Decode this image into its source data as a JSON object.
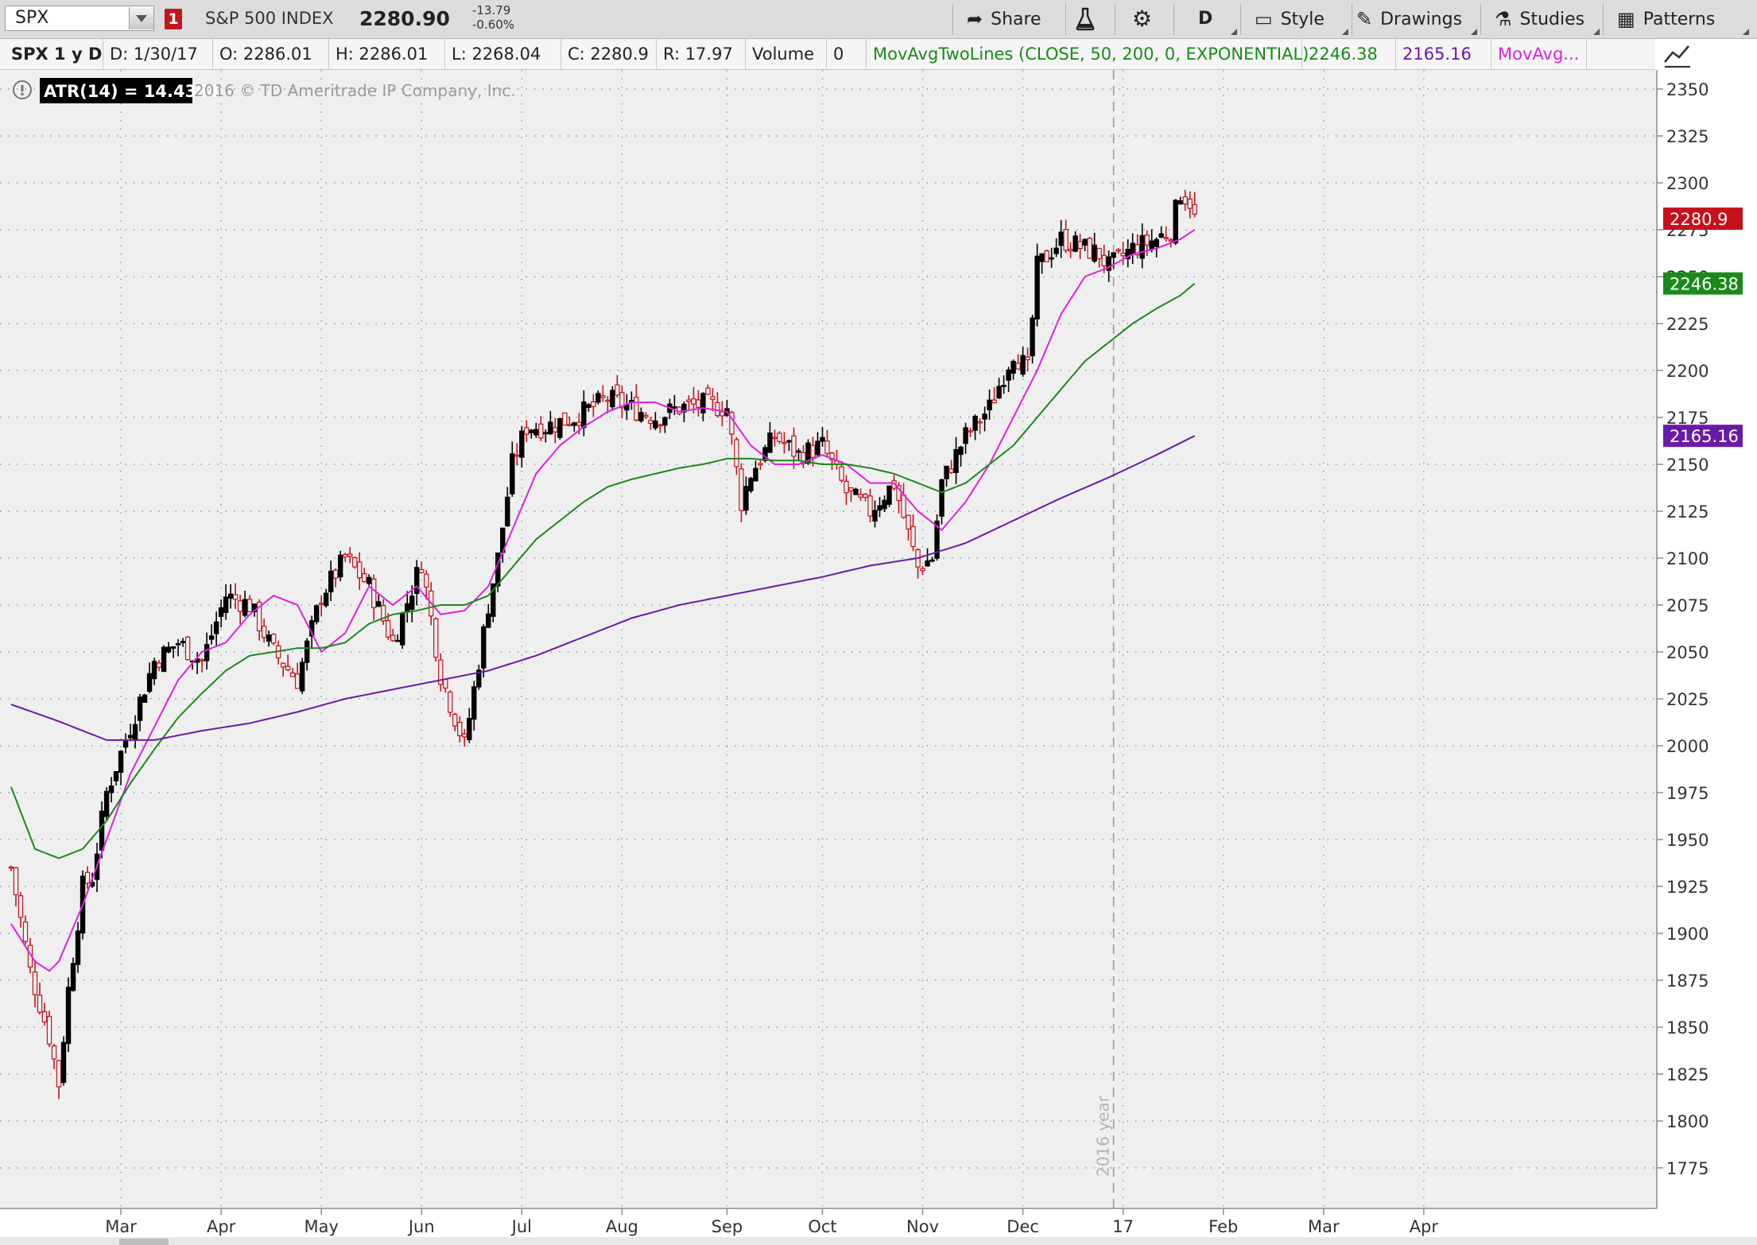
{
  "toolbar": {
    "symbol": "SPX",
    "link_number": "1",
    "index_name": "S&P 500 INDEX",
    "last_price": "2280.90",
    "net_change": "-13.79",
    "pct_change": "-0.60%",
    "share_label": "Share",
    "aggregation_label": "D",
    "style_label": "Style",
    "drawings_label": "Drawings",
    "studies_label": "Studies",
    "patterns_label": "Patterns"
  },
  "infobar": {
    "symbol_period": "SPX 1 y D",
    "date": "D:  1/30/17",
    "open": "O:  2286.01",
    "high": "H:  2286.01",
    "low": "L:  2268.04",
    "close": "C:  2280.9",
    "range": "R:  17.97",
    "volume_label": "Volume",
    "volume_value": "0",
    "study_label": "MovAvgTwoLines (CLOSE, 50, 200, 0, EXPONENTIAL)",
    "study_value_1": "2246.38",
    "study_value_2": "2165.16",
    "study2_label": "MovAvg..."
  },
  "overlay": {
    "atr_label": "ATR(14) = 14.4364",
    "copyright": "2016 © TD Ameritrade IP Company, Inc.",
    "year_marker": "2016 year"
  },
  "colors": {
    "up_candle": "#000000",
    "down_candle": "#c8101c",
    "ma_pink": "#e020e0",
    "ma_green": "#1a8a1a",
    "ma_purple": "#6a1aa8",
    "plot_background": "#efefef"
  },
  "chart_data": {
    "type": "line",
    "title": "",
    "xlabel": "",
    "ylabel": "",
    "ylim": [
      1762,
      2362
    ],
    "y_ticks": [
      1775,
      1800,
      1825,
      1850,
      1875,
      1900,
      1925,
      1950,
      1975,
      2000,
      2025,
      2050,
      2075,
      2100,
      2125,
      2150,
      2175,
      2200,
      2225,
      2250,
      2275,
      2300,
      2325,
      2350
    ],
    "x_tick_labels": [
      "Mar",
      "Apr",
      "May",
      "Jun",
      "Jul",
      "Aug",
      "Sep",
      "Oct",
      "Nov",
      "Dec",
      "17",
      "Feb",
      "Mar",
      "Apr"
    ],
    "price_labels": [
      {
        "label": "2280.9",
        "value": 2280.9,
        "color": "#c8101c"
      },
      {
        "label": "2246.38",
        "value": 2246.38,
        "color": "#1a8a1a"
      },
      {
        "label": "2165.16",
        "value": 2165.16,
        "color": "#6a1aa8"
      }
    ],
    "x_index_range": [
      0,
      343
    ],
    "x_tick_index": [
      23,
      44,
      65,
      86,
      107,
      128,
      150,
      170,
      191,
      212,
      233,
      254,
      275,
      296
    ],
    "year_marker_index": 231,
    "series": [
      {
        "name": "Price",
        "x": [
          0,
          4,
          8,
          10,
          12,
          15,
          17,
          20,
          25,
          30,
          35,
          40,
          45,
          50,
          55,
          60,
          65,
          70,
          75,
          80,
          86,
          90,
          95,
          100,
          102,
          105,
          108,
          112,
          118,
          125,
          130,
          135,
          140,
          145,
          150,
          153,
          155,
          160,
          165,
          170,
          175,
          180,
          185,
          190,
          193,
          195,
          200,
          205,
          210,
          213,
          215,
          220,
          225,
          228,
          230,
          235,
          240,
          243,
          245,
          247,
          248
        ],
        "y": [
          1935,
          1880,
          1845,
          1820,
          1870,
          1925,
          1930,
          1975,
          2010,
          2045,
          2055,
          2045,
          2080,
          2075,
          2050,
          2035,
          2080,
          2100,
          2085,
          2055,
          2098,
          2038,
          2000,
          2075,
          2100,
          2150,
          2170,
          2170,
          2175,
          2185,
          2180,
          2175,
          2180,
          2182,
          2180,
          2130,
          2145,
          2165,
          2155,
          2160,
          2135,
          2125,
          2140,
          2095,
          2100,
          2140,
          2165,
          2180,
          2210,
          2200,
          2255,
          2270,
          2265,
          2262,
          2255,
          2265,
          2270,
          2275,
          2295,
          2290,
          2280.9
        ]
      },
      {
        "name": "",
        "x": [
          0,
          5,
          8,
          10,
          15,
          20,
          25,
          30,
          35,
          40,
          45,
          50,
          55,
          60,
          65,
          70,
          75,
          80,
          85,
          90,
          95,
          100,
          105,
          110,
          115,
          120,
          125,
          130,
          135,
          140,
          145,
          150,
          155,
          160,
          165,
          170,
          175,
          180,
          185,
          190,
          195,
          200,
          205,
          210,
          215,
          220,
          225,
          230,
          235,
          240,
          245,
          248
        ],
        "y": [
          1905,
          1885,
          1880,
          1885,
          1915,
          1950,
          1985,
          2010,
          2035,
          2050,
          2055,
          2070,
          2080,
          2075,
          2050,
          2060,
          2085,
          2075,
          2085,
          2070,
          2072,
          2085,
          2115,
          2145,
          2160,
          2170,
          2178,
          2183,
          2183,
          2178,
          2180,
          2178,
          2160,
          2150,
          2150,
          2155,
          2150,
          2140,
          2140,
          2125,
          2115,
          2130,
          2150,
          2175,
          2200,
          2230,
          2250,
          2255,
          2262,
          2265,
          2270,
          2275
        ]
      },
      {
        "name": "",
        "x": [
          0,
          5,
          10,
          15,
          20,
          25,
          30,
          35,
          40,
          45,
          50,
          55,
          60,
          65,
          70,
          75,
          80,
          85,
          90,
          95,
          100,
          105,
          110,
          115,
          120,
          125,
          130,
          135,
          140,
          145,
          150,
          155,
          160,
          165,
          170,
          175,
          180,
          185,
          190,
          195,
          200,
          205,
          210,
          215,
          220,
          225,
          230,
          235,
          240,
          245,
          248
        ],
        "y": [
          1978,
          1945,
          1940,
          1945,
          1960,
          1980,
          1998,
          2015,
          2028,
          2040,
          2048,
          2050,
          2052,
          2052,
          2055,
          2065,
          2070,
          2072,
          2075,
          2075,
          2080,
          2095,
          2110,
          2120,
          2130,
          2138,
          2142,
          2145,
          2148,
          2150,
          2153,
          2153,
          2152,
          2152,
          2150,
          2150,
          2148,
          2145,
          2140,
          2135,
          2140,
          2150,
          2160,
          2175,
          2190,
          2205,
          2215,
          2225,
          2233,
          2240,
          2246.38
        ]
      },
      {
        "name": "",
        "x": [
          0,
          10,
          20,
          30,
          40,
          50,
          60,
          70,
          80,
          90,
          100,
          110,
          120,
          130,
          140,
          150,
          160,
          170,
          180,
          190,
          200,
          210,
          220,
          230,
          240,
          248
        ],
        "y": [
          2022,
          2013,
          2003,
          2003,
          2008,
          2012,
          2018,
          2025,
          2030,
          2035,
          2040,
          2048,
          2058,
          2068,
          2075,
          2080,
          2085,
          2090,
          2096,
          2100,
          2108,
          2120,
          2132,
          2143,
          2155,
          2165.16
        ]
      }
    ]
  }
}
